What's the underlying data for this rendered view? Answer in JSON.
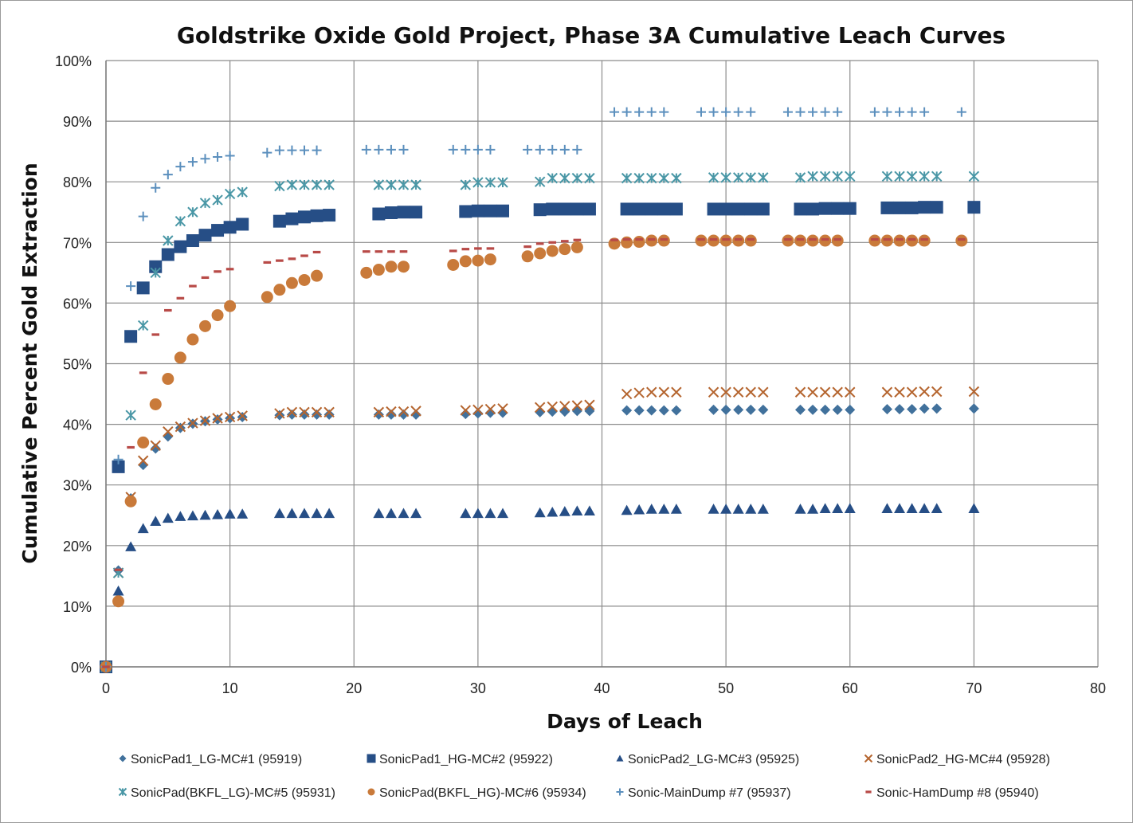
{
  "chart_data": {
    "type": "scatter",
    "title": "Goldstrike Oxide Gold Project, Phase 3A Cumulative Leach Curves",
    "xlabel": "Days of Leach",
    "ylabel": "Cumulative Percent Gold Extraction",
    "xlim": [
      0,
      80
    ],
    "ylim": [
      0,
      100
    ],
    "x_ticks": [
      "0",
      "10",
      "20",
      "30",
      "40",
      "50",
      "60",
      "70",
      "80"
    ],
    "y_ticks": [
      "0%",
      "10%",
      "20%",
      "30%",
      "40%",
      "50%",
      "60%",
      "70%",
      "80%",
      "90%",
      "100%"
    ],
    "grid": true,
    "legend_position": "bottom",
    "series": [
      {
        "name": "SonicPad1_LG-MC#1 (95919)",
        "marker": "diamond",
        "color": "#41719c",
        "x": [
          0,
          1,
          2,
          3,
          4,
          5,
          6,
          7,
          8,
          9,
          10,
          11,
          14,
          15,
          16,
          17,
          18,
          22,
          23,
          24,
          25,
          29,
          30,
          31,
          32,
          35,
          36,
          37,
          38,
          39,
          42,
          43,
          44,
          45,
          46,
          49,
          50,
          51,
          52,
          53,
          56,
          57,
          58,
          59,
          60,
          63,
          64,
          65,
          66,
          67,
          70
        ],
        "y": [
          0,
          15.9,
          27.8,
          33.3,
          36,
          38,
          39.4,
          40.1,
          40.5,
          40.8,
          41,
          41.2,
          41.5,
          41.6,
          41.6,
          41.6,
          41.6,
          41.6,
          41.6,
          41.6,
          41.6,
          41.7,
          41.8,
          41.9,
          41.9,
          42,
          42.1,
          42.1,
          42.2,
          42.2,
          42.3,
          42.3,
          42.3,
          42.3,
          42.3,
          42.4,
          42.4,
          42.4,
          42.4,
          42.4,
          42.4,
          42.4,
          42.4,
          42.4,
          42.4,
          42.5,
          42.5,
          42.5,
          42.6,
          42.6,
          42.6
        ]
      },
      {
        "name": "SonicPad1_HG-MC#2 (95922)",
        "marker": "square",
        "color": "#264e86",
        "x": [
          0,
          1,
          2,
          3,
          4,
          5,
          6,
          7,
          8,
          9,
          10,
          11,
          14,
          15,
          16,
          17,
          18,
          22,
          23,
          24,
          25,
          29,
          30,
          31,
          32,
          35,
          36,
          37,
          38,
          39,
          42,
          43,
          44,
          45,
          46,
          49,
          50,
          51,
          52,
          53,
          56,
          57,
          58,
          59,
          60,
          63,
          64,
          65,
          66,
          67,
          70
        ],
        "y": [
          0,
          33,
          54.5,
          62.5,
          66,
          68,
          69.3,
          70.3,
          71.2,
          72,
          72.5,
          73,
          73.5,
          73.9,
          74.2,
          74.4,
          74.5,
          74.7,
          74.9,
          75,
          75,
          75.1,
          75.2,
          75.2,
          75.2,
          75.4,
          75.5,
          75.5,
          75.5,
          75.5,
          75.5,
          75.5,
          75.5,
          75.5,
          75.5,
          75.5,
          75.5,
          75.5,
          75.5,
          75.5,
          75.5,
          75.5,
          75.6,
          75.6,
          75.6,
          75.7,
          75.7,
          75.7,
          75.8,
          75.8,
          75.8
        ]
      },
      {
        "name": "SonicPad2_LG-MC#3 (95925)",
        "marker": "triangle",
        "color": "#264e86",
        "x": [
          0,
          1,
          2,
          3,
          4,
          5,
          6,
          7,
          8,
          9,
          10,
          11,
          14,
          15,
          16,
          17,
          18,
          22,
          23,
          24,
          25,
          29,
          30,
          31,
          32,
          35,
          36,
          37,
          38,
          39,
          42,
          43,
          44,
          45,
          46,
          49,
          50,
          51,
          52,
          53,
          56,
          57,
          58,
          59,
          60,
          63,
          64,
          65,
          66,
          67,
          70
        ],
        "y": [
          0,
          12.5,
          19.8,
          22.8,
          24,
          24.5,
          24.8,
          24.9,
          25,
          25.1,
          25.2,
          25.2,
          25.3,
          25.3,
          25.3,
          25.3,
          25.3,
          25.3,
          25.3,
          25.3,
          25.3,
          25.3,
          25.3,
          25.3,
          25.3,
          25.4,
          25.5,
          25.6,
          25.7,
          25.7,
          25.8,
          25.9,
          26,
          26,
          26,
          26,
          26,
          26,
          26,
          26,
          26,
          26,
          26.1,
          26.1,
          26.1,
          26.1,
          26.1,
          26.1,
          26.1,
          26.1,
          26.1
        ]
      },
      {
        "name": "SonicPad2_HG-MC#4 (95928)",
        "marker": "x",
        "color": "#b5652f",
        "x": [
          0,
          1,
          2,
          3,
          4,
          5,
          6,
          7,
          8,
          9,
          10,
          11,
          14,
          15,
          16,
          17,
          18,
          22,
          23,
          24,
          25,
          29,
          30,
          31,
          32,
          35,
          36,
          37,
          38,
          39,
          42,
          43,
          44,
          45,
          46,
          49,
          50,
          51,
          52,
          53,
          56,
          57,
          58,
          59,
          60,
          63,
          64,
          65,
          66,
          67,
          70
        ],
        "y": [
          0,
          15.5,
          28,
          34,
          36.5,
          38.8,
          39.6,
          40.2,
          40.6,
          41,
          41.2,
          41.4,
          41.8,
          42,
          42,
          42,
          42,
          42,
          42.1,
          42.1,
          42.2,
          42.3,
          42.4,
          42.5,
          42.6,
          42.8,
          42.9,
          43,
          43.1,
          43.2,
          45,
          45.2,
          45.3,
          45.3,
          45.3,
          45.3,
          45.3,
          45.3,
          45.3,
          45.3,
          45.3,
          45.3,
          45.3,
          45.3,
          45.3,
          45.3,
          45.3,
          45.3,
          45.4,
          45.4,
          45.4
        ]
      },
      {
        "name": "SonicPad(BKFL_LG)-MC#5 (95931)",
        "marker": "star",
        "color": "#4a97a6",
        "x": [
          0,
          1,
          2,
          3,
          4,
          5,
          6,
          7,
          8,
          9,
          10,
          11,
          14,
          15,
          16,
          17,
          18,
          22,
          23,
          24,
          25,
          29,
          30,
          31,
          32,
          35,
          36,
          37,
          38,
          39,
          42,
          43,
          44,
          45,
          46,
          49,
          50,
          51,
          52,
          53,
          56,
          57,
          58,
          59,
          60,
          63,
          64,
          65,
          66,
          67,
          70
        ],
        "y": [
          0,
          15.5,
          41.5,
          56.3,
          65,
          70.3,
          73.5,
          75,
          76.5,
          77,
          78,
          78.3,
          79.3,
          79.5,
          79.5,
          79.5,
          79.5,
          79.5,
          79.5,
          79.5,
          79.5,
          79.5,
          79.9,
          79.9,
          79.9,
          80,
          80.6,
          80.6,
          80.6,
          80.6,
          80.6,
          80.6,
          80.6,
          80.6,
          80.6,
          80.7,
          80.7,
          80.7,
          80.7,
          80.7,
          80.7,
          80.9,
          80.9,
          80.9,
          80.9,
          80.9,
          80.9,
          80.9,
          80.9,
          80.9,
          80.9
        ]
      },
      {
        "name": "SonicPad(BKFL_HG)-MC#6 (95934)",
        "marker": "circle",
        "color": "#c97a3a",
        "x": [
          0,
          1,
          2,
          3,
          4,
          5,
          6,
          7,
          8,
          9,
          10,
          13,
          14,
          15,
          16,
          17,
          21,
          22,
          23,
          24,
          28,
          29,
          30,
          31,
          34,
          35,
          36,
          37,
          38,
          41,
          42,
          43,
          44,
          45,
          48,
          49,
          50,
          51,
          52,
          55,
          56,
          57,
          58,
          59,
          62,
          63,
          64,
          65,
          66,
          69
        ],
        "y": [
          0,
          10.8,
          27.3,
          37,
          43.3,
          47.5,
          51,
          54,
          56.2,
          58,
          59.5,
          61,
          62.2,
          63.3,
          63.8,
          64.5,
          65,
          65.5,
          66,
          66,
          66.3,
          66.9,
          67,
          67.2,
          67.7,
          68.2,
          68.6,
          68.9,
          69.2,
          69.8,
          70,
          70.1,
          70.3,
          70.3,
          70.3,
          70.3,
          70.3,
          70.3,
          70.3,
          70.3,
          70.3,
          70.3,
          70.3,
          70.3,
          70.3,
          70.3,
          70.3,
          70.3,
          70.3,
          70.3
        ]
      },
      {
        "name": "Sonic-MainDump #7 (95937)",
        "marker": "plus",
        "color": "#5b8fbd",
        "x": [
          0,
          1,
          2,
          3,
          4,
          5,
          6,
          7,
          8,
          9,
          10,
          13,
          14,
          15,
          16,
          17,
          21,
          22,
          23,
          24,
          28,
          29,
          30,
          31,
          34,
          35,
          36,
          37,
          38,
          41,
          42,
          43,
          44,
          45,
          48,
          49,
          50,
          51,
          52,
          55,
          56,
          57,
          58,
          59,
          62,
          63,
          64,
          65,
          66,
          69
        ],
        "y": [
          0,
          34.2,
          62.8,
          74.3,
          79,
          81.2,
          82.5,
          83.3,
          83.8,
          84.1,
          84.3,
          84.8,
          85.2,
          85.2,
          85.2,
          85.2,
          85.3,
          85.3,
          85.3,
          85.3,
          85.3,
          85.3,
          85.3,
          85.3,
          85.3,
          85.3,
          85.3,
          85.3,
          85.3,
          91.5,
          91.5,
          91.5,
          91.5,
          91.5,
          91.5,
          91.5,
          91.5,
          91.5,
          91.5,
          91.5,
          91.5,
          91.5,
          91.5,
          91.5,
          91.5,
          91.5,
          91.5,
          91.5,
          91.5,
          91.5
        ]
      },
      {
        "name": "Sonic-HamDump #8 (95940)",
        "marker": "dash",
        "color": "#b84a47",
        "x": [
          0,
          1,
          2,
          3,
          4,
          5,
          6,
          7,
          8,
          9,
          10,
          13,
          14,
          15,
          16,
          17,
          21,
          22,
          23,
          24,
          28,
          29,
          30,
          31,
          34,
          35,
          36,
          37,
          38,
          41,
          42,
          43,
          44,
          45,
          48,
          49,
          50,
          51,
          52,
          55,
          56,
          57,
          58,
          59,
          62,
          63,
          64,
          65,
          66,
          69
        ],
        "y": [
          0,
          16,
          36.2,
          48.5,
          54.8,
          58.8,
          60.8,
          62.8,
          64.2,
          65.2,
          65.6,
          66.7,
          67,
          67.3,
          67.8,
          68.4,
          68.5,
          68.5,
          68.5,
          68.5,
          68.6,
          68.9,
          69,
          69,
          69.3,
          69.8,
          70,
          70.2,
          70.4,
          70.4,
          70.5,
          70.5,
          70.5,
          70.5,
          70.5,
          70.5,
          70.5,
          70.5,
          70.5,
          70.5,
          70.5,
          70.5,
          70.5,
          70.5,
          70.5,
          70.5,
          70.5,
          70.5,
          70.5,
          70.5
        ]
      }
    ]
  }
}
